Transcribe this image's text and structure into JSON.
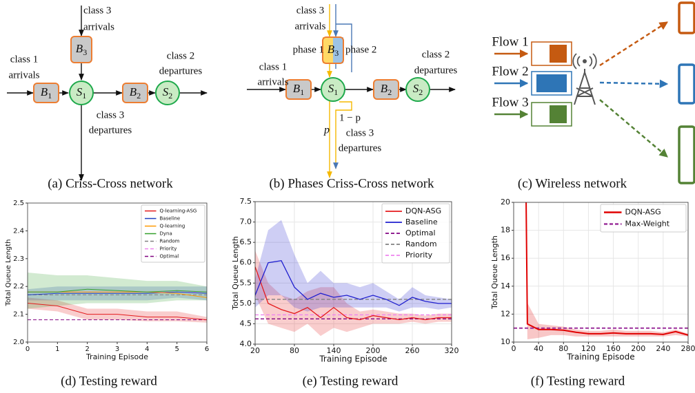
{
  "diagrams": [
    {
      "caption": "(a) Criss-Cross network",
      "nodes": [
        {
          "base": "B",
          "sub": "1"
        },
        {
          "base": "S",
          "sub": "1"
        },
        {
          "base": "B",
          "sub": "2"
        },
        {
          "base": "S",
          "sub": "2"
        },
        {
          "base": "B",
          "sub": "3"
        }
      ],
      "labels": [
        [
          "class 3",
          "arrivals"
        ],
        [
          "class 1",
          "arrivals"
        ],
        [
          "class 2",
          "departures"
        ],
        [
          "class 3",
          "departures"
        ]
      ]
    },
    {
      "caption": "(b) Phases Criss-Cross network",
      "nodes": [
        {
          "base": "B",
          "sub": "1"
        },
        {
          "base": "S",
          "sub": "1"
        },
        {
          "base": "B",
          "sub": "2"
        },
        {
          "base": "S",
          "sub": "2"
        },
        {
          "base": "B",
          "sub": "3"
        }
      ],
      "labels": [
        [
          "class 3",
          "arrivals"
        ],
        [
          "class 1",
          "arrivals"
        ],
        [
          "class 2",
          "departures"
        ],
        [
          "class 3",
          "departures"
        ]
      ],
      "phases": [
        "phase 1",
        "phase 2"
      ],
      "branch": [
        "p",
        "1 − p"
      ]
    },
    {
      "caption": "(c) Wireless network",
      "flows": [
        {
          "name": "Flow 1",
          "color": "#c55a11"
        },
        {
          "name": "Flow 2",
          "color": "#2e75b6"
        },
        {
          "name": "Flow 3",
          "color": "#548235"
        }
      ]
    }
  ],
  "chart_data": [
    {
      "type": "line",
      "caption": "(d) Testing reward",
      "x_label": "Training Episode",
      "y_label": "Total Queue Length",
      "x": [
        0,
        1,
        2,
        3,
        4,
        5,
        6
      ],
      "xlim": [
        0,
        6
      ],
      "xticks": [
        0,
        1,
        2,
        3,
        4,
        5,
        6
      ],
      "ylim": [
        2,
        2.5
      ],
      "yticks": [
        {
          "value": 2,
          "label": "2.0"
        },
        2.1,
        2.2,
        2.3,
        2.4,
        2.5
      ],
      "grid": false,
      "legend": "upper right",
      "series": [
        {
          "name": "Q-learning-ASG",
          "color": "#e41a1c",
          "values": [
            2.14,
            2.13,
            2.1,
            2.1,
            2.09,
            2.09,
            2.08
          ],
          "lower": [
            2.12,
            2.11,
            2.08,
            2.08,
            2.075,
            2.075,
            2.07
          ],
          "upper": [
            2.16,
            2.15,
            2.12,
            2.12,
            2.11,
            2.11,
            2.09
          ]
        },
        {
          "name": "Baseline",
          "color": "#1f3fbf",
          "values": [
            2.17,
            2.175,
            2.175,
            2.175,
            2.175,
            2.18,
            2.175
          ],
          "lower": [
            2.15,
            2.15,
            2.15,
            2.15,
            2.15,
            2.16,
            2.15
          ],
          "upper": [
            2.19,
            2.2,
            2.2,
            2.2,
            2.2,
            2.2,
            2.2
          ]
        },
        {
          "name": "Q-learning",
          "color": "#ff9900",
          "values": [
            2.18,
            2.18,
            2.18,
            2.18,
            2.18,
            2.175,
            2.16
          ]
        },
        {
          "name": "Dyna",
          "color": "#33a02c",
          "values": [
            2.18,
            2.18,
            2.19,
            2.185,
            2.18,
            2.185,
            2.18
          ],
          "lower": [
            2.12,
            2.13,
            2.14,
            2.14,
            2.14,
            2.15,
            2.15
          ],
          "upper": [
            2.25,
            2.24,
            2.24,
            2.23,
            2.22,
            2.22,
            2.2
          ]
        }
      ],
      "reference_lines": [
        {
          "name": "Random",
          "color": "#808080",
          "value": 2.17
        },
        {
          "name": "Priority",
          "color": "#ee82ee",
          "value": 2.18
        },
        {
          "name": "Optimal",
          "color": "#800080",
          "value": 2.08
        }
      ]
    },
    {
      "type": "line",
      "caption": "(e) Testing reward",
      "x_label": "Training Episode",
      "y_label": "Total Queue Length",
      "x": [
        20,
        40,
        60,
        80,
        100,
        120,
        140,
        160,
        180,
        200,
        220,
        240,
        260,
        280,
        300,
        320
      ],
      "xlim": [
        20,
        320
      ],
      "xticks": [
        20,
        80,
        140,
        200,
        260,
        320
      ],
      "ylim": [
        4,
        7.5
      ],
      "yticks": [
        {
          "value": 4,
          "label": "4.0"
        },
        4.5,
        {
          "value": 5,
          "label": "5.0"
        },
        5.5,
        {
          "value": 6,
          "label": "6.0"
        },
        6.5,
        {
          "value": 7,
          "label": "7.0"
        },
        7.5
      ],
      "grid": true,
      "legend": "upper right",
      "series": [
        {
          "name": "DQN-ASG",
          "color": "#e41a1c",
          "values": [
            5.9,
            5.0,
            4.85,
            4.75,
            4.9,
            4.65,
            4.9,
            4.65,
            4.6,
            4.7,
            4.65,
            4.6,
            4.65,
            4.6,
            4.65,
            4.65
          ],
          "lower": [
            5.2,
            4.5,
            4.4,
            4.3,
            4.5,
            4.2,
            4.4,
            4.3,
            4.4,
            4.5,
            4.5,
            4.5,
            4.55,
            4.5,
            4.55,
            4.55
          ],
          "upper": [
            6.3,
            5.5,
            5.2,
            5.1,
            5.3,
            5.4,
            5.4,
            5.0,
            4.8,
            4.85,
            4.8,
            4.75,
            4.75,
            4.7,
            4.75,
            4.75
          ]
        },
        {
          "name": "Baseline",
          "color": "#1f1fcf",
          "values": [
            5.2,
            6.0,
            6.05,
            5.4,
            5.1,
            5.25,
            5.15,
            5.2,
            5.1,
            5.2,
            5.1,
            4.95,
            5.15,
            5.05,
            5.0,
            5.0
          ],
          "lower": [
            4.9,
            5.2,
            5.2,
            4.9,
            4.8,
            4.9,
            4.9,
            4.9,
            4.9,
            4.9,
            4.9,
            4.8,
            4.9,
            4.9,
            4.85,
            4.9
          ],
          "upper": [
            5.6,
            6.8,
            7.05,
            6.2,
            5.5,
            5.8,
            5.5,
            5.5,
            5.4,
            5.5,
            5.3,
            5.1,
            5.4,
            5.2,
            5.15,
            5.1
          ]
        }
      ],
      "reference_lines": [
        {
          "name": "Optimal",
          "color": "#800080",
          "value": 4.62
        },
        {
          "name": "Random",
          "color": "#808080",
          "value": 5.1
        },
        {
          "name": "Priority",
          "color": "#ee82ee",
          "value": 4.72
        }
      ]
    },
    {
      "type": "line",
      "caption": "(f) Testing reward",
      "x_label": "Training Episode",
      "y_label": "Total Queue Length",
      "x": [
        20,
        22,
        40,
        60,
        80,
        100,
        120,
        140,
        160,
        180,
        200,
        220,
        240,
        260,
        280
      ],
      "xlim": [
        0,
        280
      ],
      "xticks": [
        0,
        40,
        80,
        120,
        160,
        200,
        240,
        280
      ],
      "ylim": [
        10,
        20
      ],
      "yticks": [
        10,
        12,
        14,
        16,
        18,
        20
      ],
      "grid": true,
      "legend": "upper right",
      "series": [
        {
          "name": "DQN-ASG",
          "color": "#e00000",
          "values": [
            20,
            11.3,
            10.9,
            10.9,
            10.85,
            10.7,
            10.6,
            10.6,
            10.65,
            10.6,
            10.6,
            10.6,
            10.55,
            10.75,
            10.5
          ],
          "lower": [
            20,
            10.2,
            10.3,
            10.5,
            10.5,
            10.4,
            10.4,
            10.4,
            10.4,
            10.4,
            10.4,
            10.4,
            10.4,
            10.5,
            10.4
          ],
          "upper": [
            20,
            12.8,
            11.3,
            11.2,
            11.1,
            10.9,
            10.8,
            10.8,
            10.9,
            10.8,
            10.8,
            10.8,
            10.7,
            10.9,
            10.6
          ]
        }
      ],
      "reference_lines": [
        {
          "name": "Max-Weight",
          "color": "#9b309b",
          "value": 11
        }
      ]
    }
  ]
}
